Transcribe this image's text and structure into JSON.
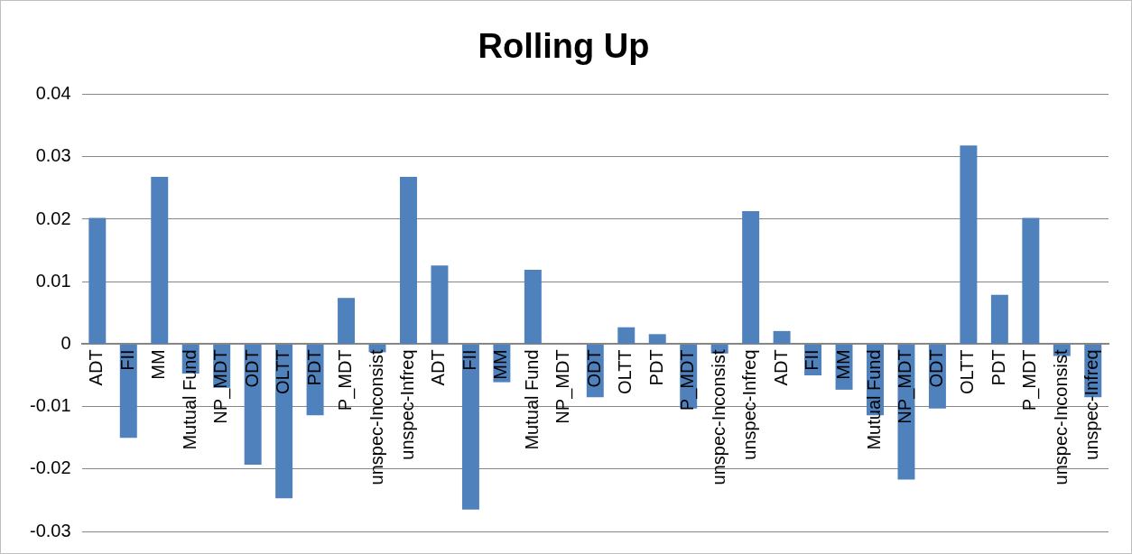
{
  "chart_data": {
    "type": "bar",
    "title": "Rolling Up",
    "categories": [
      "ADT",
      "FII",
      "MM",
      "Mutual Fund",
      "NP_MDT",
      "ODT",
      "OLTT",
      "PDT",
      "P_MDT",
      "unspec-Inconsist",
      "unspec-Infreq",
      "ADT",
      "FII",
      "MM",
      "Mutual Fund",
      "NP_MDT",
      "ODT",
      "OLTT",
      "PDT",
      "P_MDT",
      "unspec-Inconsist",
      "unspec-Infreq",
      "ADT",
      "FII",
      "MM",
      "Mutual Fund",
      "NP_MDT",
      "ODT",
      "OLTT",
      "PDT",
      "P_MDT",
      "unspec-Inconsist",
      "unspec-Infreq"
    ],
    "values": [
      0.0202,
      -0.015,
      0.0268,
      -0.0047,
      -0.007,
      -0.0193,
      -0.0247,
      -0.0114,
      0.0074,
      -0.0013,
      0.0268,
      0.0126,
      -0.0265,
      -0.0061,
      0.0119,
      0,
      -0.0085,
      0.0027,
      0.0016,
      -0.0103,
      -0.0015,
      0.0213,
      0.0021,
      -0.005,
      -0.0073,
      -0.0114,
      -0.0217,
      -0.0103,
      0.0318,
      0.0079,
      0.0202,
      -0.0019,
      -0.0085
    ],
    "color": "#4f81bd",
    "ylim": [
      -0.03,
      0.04
    ],
    "yticks": [
      -0.03,
      -0.02,
      -0.01,
      0,
      0.01,
      0.02,
      0.03,
      0.04
    ],
    "grid": "y",
    "legend": false
  }
}
